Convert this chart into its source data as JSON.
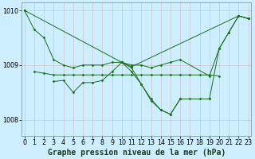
{
  "title": "Graphe pression niveau de la mer (hPa)",
  "bg_color": "#cceeff",
  "grid_color": "#aacccc",
  "line_color": "#1a6e1a",
  "series": [
    {
      "x": [
        0,
        1,
        2,
        3,
        4,
        5,
        6,
        7,
        8,
        9,
        10,
        11,
        12,
        13,
        14,
        15,
        16,
        19,
        20,
        21,
        22,
        23
      ],
      "y": [
        1010.0,
        1009.65,
        1009.5,
        1009.1,
        1009.0,
        1008.95,
        1009.0,
        1009.0,
        1009.0,
        1009.05,
        1009.05,
        1009.0,
        1009.0,
        1008.95,
        1009.0,
        1009.05,
        1009.1,
        1008.8,
        1009.3,
        1009.6,
        1009.9,
        1009.85
      ]
    },
    {
      "x": [
        1,
        2,
        3,
        4,
        5,
        6,
        7,
        8,
        9,
        10,
        11,
        12,
        13,
        14,
        15,
        16,
        17,
        18,
        19,
        20
      ],
      "y": [
        1008.88,
        1008.85,
        1008.82,
        1008.82,
        1008.82,
        1008.82,
        1008.82,
        1008.82,
        1008.82,
        1008.82,
        1008.82,
        1008.82,
        1008.82,
        1008.82,
        1008.82,
        1008.82,
        1008.82,
        1008.82,
        1008.82,
        1008.8
      ]
    },
    {
      "x": [
        3,
        4,
        5,
        6,
        7,
        8,
        9,
        10,
        11,
        12,
        13,
        14,
        15,
        16,
        17,
        18,
        19
      ],
      "y": [
        1008.7,
        1008.72,
        1008.5,
        1008.68,
        1008.68,
        1008.72,
        1008.88,
        1009.05,
        1008.88,
        1008.65,
        1008.35,
        1008.18,
        1008.1,
        1008.38,
        1008.38,
        1008.38,
        1008.38
      ]
    },
    {
      "x": [
        0,
        10,
        11,
        22,
        23
      ],
      "y": [
        1010.0,
        1009.05,
        1008.97,
        1009.9,
        1009.85
      ]
    },
    {
      "x": [
        10,
        11,
        12,
        13,
        14,
        15,
        16,
        19,
        20,
        21,
        22,
        23
      ],
      "y": [
        1009.05,
        1008.95,
        1008.65,
        1008.38,
        1008.18,
        1008.1,
        1008.38,
        1008.38,
        1009.3,
        1009.6,
        1009.9,
        1009.85
      ]
    }
  ],
  "xlim": [
    0,
    23
  ],
  "ylim": [
    1007.7,
    1010.15
  ],
  "yticks": [
    1008,
    1009,
    1010
  ],
  "xticks": [
    0,
    1,
    2,
    3,
    4,
    5,
    6,
    7,
    8,
    9,
    10,
    11,
    12,
    13,
    14,
    15,
    16,
    17,
    18,
    19,
    20,
    21,
    22,
    23
  ],
  "title_fontsize": 7.0,
  "tick_fontsize": 5.8
}
